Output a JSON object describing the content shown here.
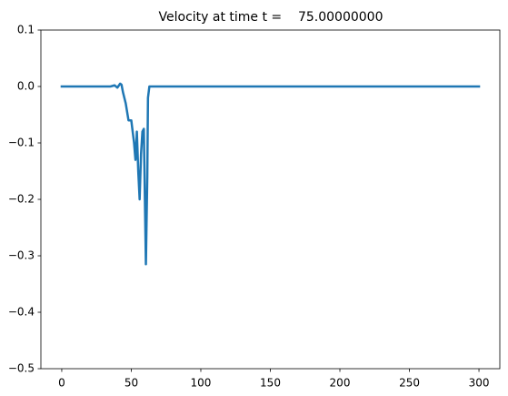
{
  "chart_data": {
    "type": "line",
    "title": "Velocity at time t =    75.00000000",
    "x": [
      0,
      10,
      20,
      30,
      35,
      38,
      40,
      42,
      43,
      44,
      46,
      48,
      50,
      51,
      52,
      53,
      54,
      55,
      56,
      57,
      58,
      59,
      60.5,
      61.5,
      62,
      63,
      65,
      100,
      150,
      200,
      250,
      300
    ],
    "series": [
      {
        "color": "#1f77b4",
        "values": [
          0,
          0,
          0,
          0,
          0,
          0.002,
          -0.002,
          0.005,
          0.003,
          -0.01,
          -0.03,
          -0.06,
          -0.06,
          -0.08,
          -0.1,
          -0.13,
          -0.08,
          -0.15,
          -0.2,
          -0.12,
          -0.08,
          -0.075,
          -0.315,
          -0.16,
          -0.02,
          0,
          0,
          0,
          0,
          0,
          0,
          0
        ]
      }
    ],
    "xlim": [
      -15,
      315
    ],
    "xticks": [
      0,
      50,
      100,
      150,
      200,
      250,
      300
    ],
    "ylim": [
      -0.5,
      0.1
    ],
    "yticks": [
      {
        "value": -0.5,
        "label": "−0.5"
      },
      {
        "value": -0.4,
        "label": "−0.4"
      },
      {
        "value": -0.3,
        "label": "−0.3"
      },
      {
        "value": -0.2,
        "label": "−0.2"
      },
      {
        "value": -0.1,
        "label": "−0.1"
      },
      {
        "value": 0,
        "label": "0.0"
      },
      0.1
    ]
  }
}
